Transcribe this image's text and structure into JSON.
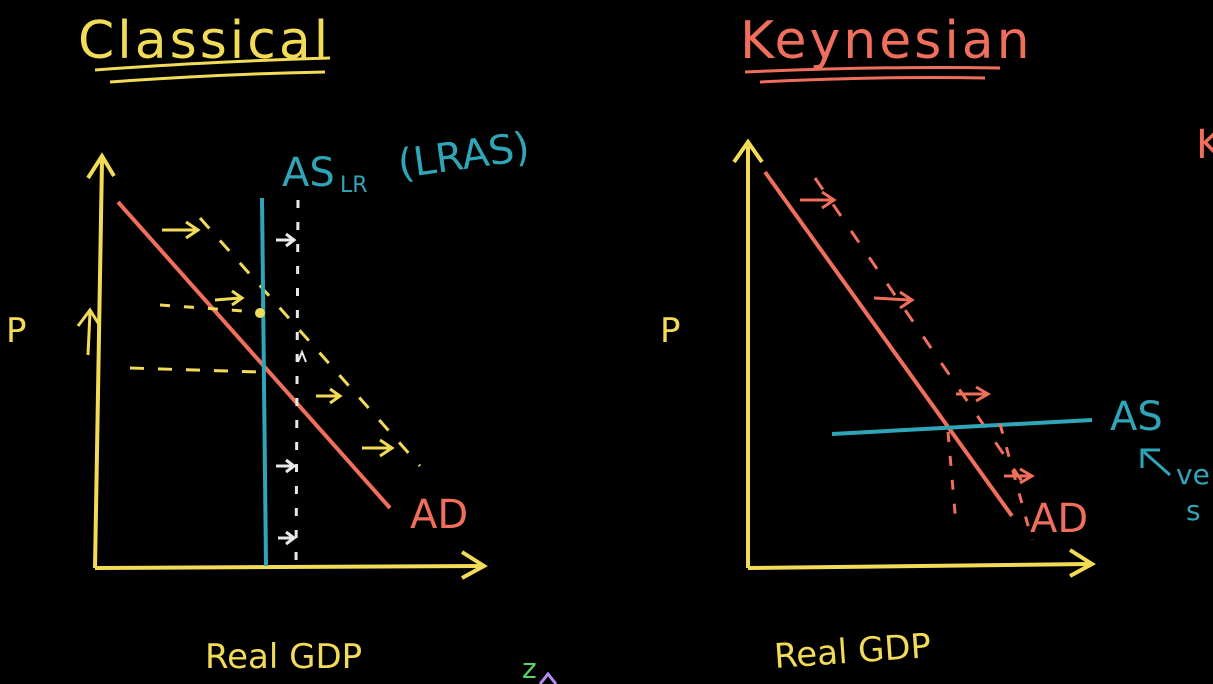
{
  "colors": {
    "background": "#000000",
    "axis": "#f2dc57",
    "aggregate_demand": "#f06e5c",
    "aggregate_supply": "#2fa6b8",
    "shift_guides": "#f2dc57",
    "white_guides": "#e8e8e8",
    "note_purple": "#b58cf0",
    "note_green": "#58d36a"
  },
  "classical": {
    "title": "Classical",
    "y_axis_label": "P",
    "x_axis_label": "Real GDP",
    "supply_label": "AS",
    "supply_subscript": "LR",
    "supply_alt_label": "(LRAS)",
    "demand_label": "AD",
    "up_arrow_icon": "up-arrow-icon",
    "shift_arrow_icon": "right-arrow-icon"
  },
  "keynesian": {
    "title": "Keynesian",
    "y_axis_label": "P",
    "x_axis_label": "Real GDP",
    "supply_label": "AS",
    "demand_label": "AD",
    "side_note_line1": "ve",
    "side_note_line2": "s",
    "shift_arrow_icon": "right-arrow-icon"
  },
  "partial_text": {
    "right_edge_letter": "K",
    "bottom_scribble": "z"
  }
}
